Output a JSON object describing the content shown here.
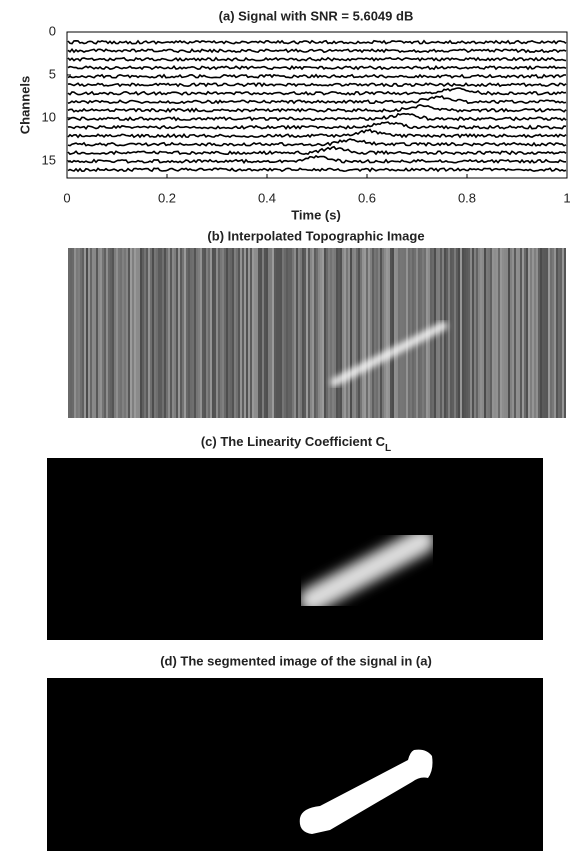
{
  "panels": [
    {
      "title": "(a) Signal with SNR =  5.6049 dB",
      "ylabel": "Channels",
      "xlabel": "Time (s)",
      "xlim": [
        0,
        1
      ],
      "ylim": [
        0,
        17
      ],
      "xticks": [
        0,
        0.2,
        0.4,
        0.6,
        0.8,
        1
      ],
      "yticks": [
        0,
        5,
        10,
        15
      ]
    },
    {
      "title": "(b) Interpolated Topographic Image"
    },
    {
      "title": "(c) The Linearity Coefficient C",
      "title_subscript": "L"
    },
    {
      "title": "(d) The segmented image of the signal in (a)"
    }
  ]
}
